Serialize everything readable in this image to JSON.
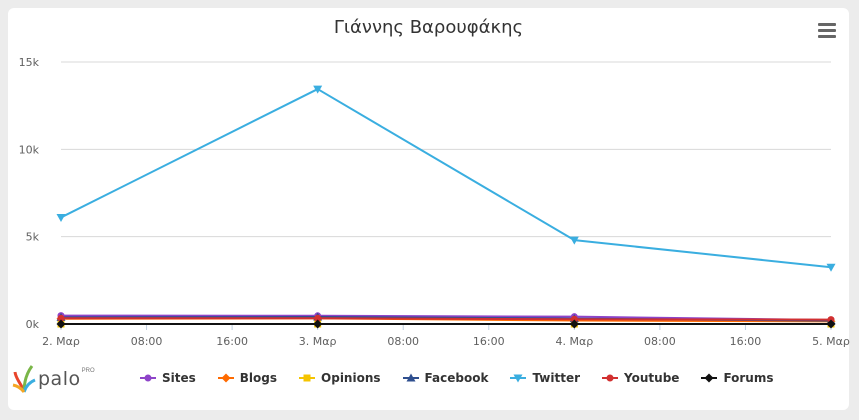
{
  "chart_data": {
    "type": "line",
    "title": "Γιάννης Βαρουφάκης",
    "x_ticks": [
      "2. Μαρ",
      "08:00",
      "16:00",
      "3. Μαρ",
      "08:00",
      "16:00",
      "4. Μαρ",
      "08:00",
      "16:00",
      "5. Μαρ"
    ],
    "y_ticks": [
      "0k",
      "5k",
      "10k",
      "15k"
    ],
    "ylim": [
      0,
      15000
    ],
    "grid": true,
    "legend_position": "bottom",
    "categories": [
      "2. Μαρ",
      "3. Μαρ",
      "4. Μαρ",
      "5. Μαρ"
    ],
    "series": [
      {
        "name": "Sites",
        "color": "#8e44c9",
        "marker": "circle",
        "values": [
          480,
          470,
          420,
          230
        ]
      },
      {
        "name": "Blogs",
        "color": "#ff6a00",
        "marker": "diamond",
        "values": [
          300,
          320,
          200,
          150
        ]
      },
      {
        "name": "Opinions",
        "color": "#f5c400",
        "marker": "square",
        "values": [
          0,
          0,
          0,
          0
        ]
      },
      {
        "name": "Facebook",
        "color": "#2f4f8f",
        "marker": "triangle",
        "values": [
          380,
          400,
          310,
          190
        ]
      },
      {
        "name": "Twitter",
        "color": "#3aaee0",
        "marker": "triangle-down",
        "values": [
          6100,
          13450,
          4800,
          3250
        ]
      },
      {
        "name": "Youtube",
        "color": "#d23030",
        "marker": "circle",
        "values": [
          330,
          330,
          270,
          250
        ]
      },
      {
        "name": "Forums",
        "color": "#111111",
        "marker": "diamond",
        "values": [
          0,
          0,
          0,
          0
        ]
      }
    ]
  },
  "ui": {
    "menu_icon": "hamburger-menu-icon",
    "logo": {
      "text": "palo",
      "sup": "PRO"
    }
  }
}
